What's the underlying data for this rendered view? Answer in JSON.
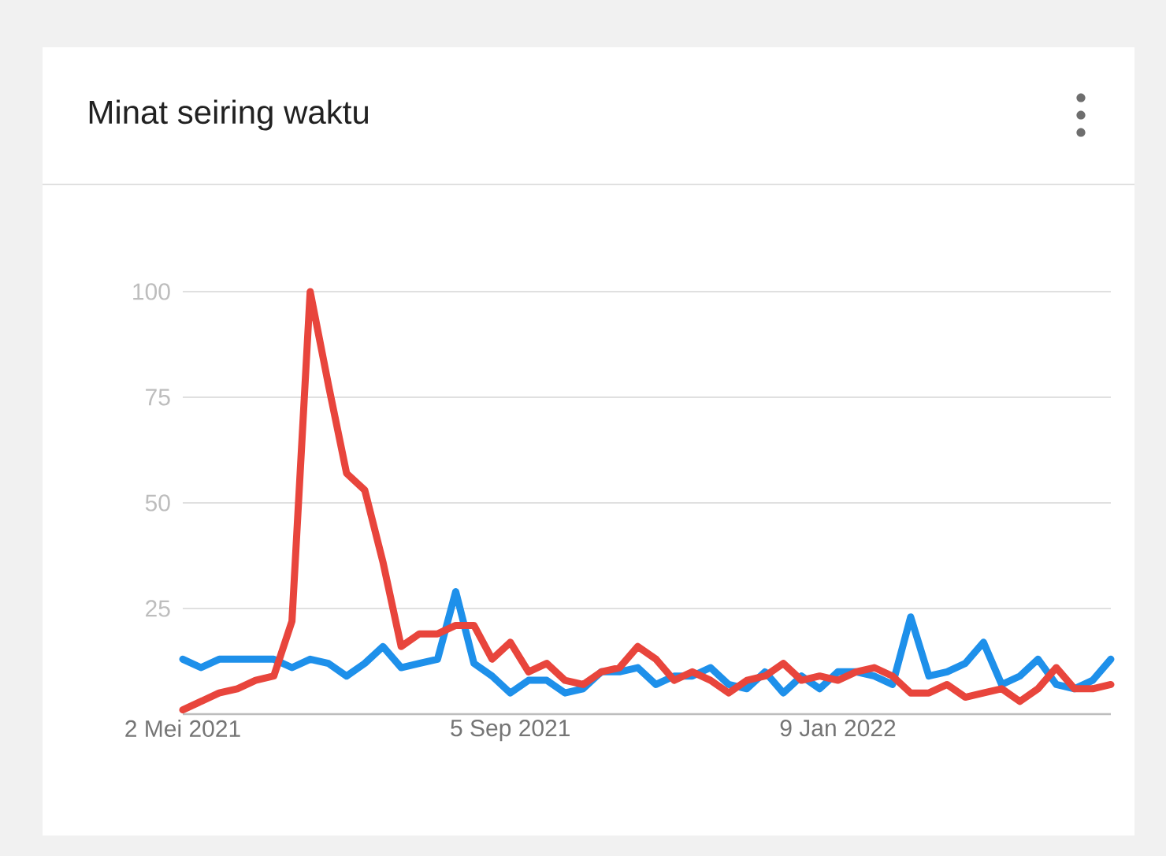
{
  "chart_data": {
    "type": "line",
    "title": "Minat seiring waktu",
    "x": [
      "2021-05-02",
      "2021-05-09",
      "2021-05-16",
      "2021-05-23",
      "2021-05-30",
      "2021-06-06",
      "2021-06-13",
      "2021-06-20",
      "2021-06-27",
      "2021-07-04",
      "2021-07-11",
      "2021-07-18",
      "2021-07-25",
      "2021-08-01",
      "2021-08-08",
      "2021-08-15",
      "2021-08-22",
      "2021-08-29",
      "2021-09-05",
      "2021-09-12",
      "2021-09-19",
      "2021-09-26",
      "2021-10-03",
      "2021-10-10",
      "2021-10-17",
      "2021-10-24",
      "2021-10-31",
      "2021-11-07",
      "2021-11-14",
      "2021-11-21",
      "2021-11-28",
      "2021-12-05",
      "2021-12-12",
      "2021-12-19",
      "2021-12-26",
      "2022-01-02",
      "2022-01-09",
      "2022-01-16",
      "2022-01-23",
      "2022-01-30",
      "2022-02-06",
      "2022-02-13",
      "2022-02-20",
      "2022-02-27",
      "2022-03-06",
      "2022-03-13",
      "2022-03-20",
      "2022-03-27",
      "2022-04-03",
      "2022-04-10",
      "2022-04-17",
      "2022-04-24"
    ],
    "series": [
      {
        "color": "#1e90ea",
        "values": [
          13,
          11,
          13,
          13,
          13,
          13,
          11,
          13,
          12,
          9,
          12,
          16,
          11,
          12,
          13,
          29,
          12,
          9,
          5,
          8,
          8,
          5,
          6,
          10,
          10,
          11,
          7,
          9,
          9,
          11,
          7,
          6,
          10,
          5,
          9,
          6,
          10,
          10,
          9,
          7,
          23,
          9,
          10,
          12,
          17,
          7,
          9,
          13,
          7,
          6,
          8,
          13
        ]
      },
      {
        "color": "#e8453c",
        "values": [
          1,
          3,
          5,
          6,
          8,
          9,
          22,
          100,
          78,
          57,
          53,
          36,
          16,
          19,
          19,
          21,
          21,
          13,
          17,
          10,
          12,
          8,
          7,
          10,
          11,
          16,
          13,
          8,
          10,
          8,
          5,
          8,
          9,
          12,
          8,
          9,
          8,
          10,
          11,
          9,
          5,
          5,
          7,
          4,
          5,
          6,
          3,
          6,
          11,
          6,
          6,
          7
        ]
      }
    ],
    "xlim": [
      "2021-05-02",
      "2022-04-24"
    ],
    "xticks": [
      {
        "value": "2021-05-02",
        "label": "2 Mei 2021"
      },
      {
        "value": "2021-09-05",
        "label": "5 Sep 2021"
      },
      {
        "value": "2022-01-09",
        "label": "9 Jan 2022"
      }
    ],
    "ylim": [
      0,
      100
    ],
    "yticks": [
      {
        "value": 0,
        "label": null
      },
      25,
      50,
      75,
      100
    ],
    "grid": "y"
  }
}
